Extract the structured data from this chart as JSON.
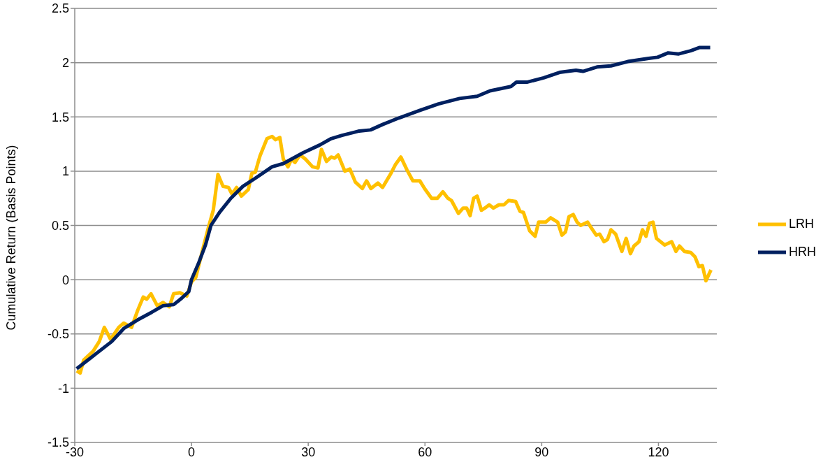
{
  "chart_data": {
    "type": "line",
    "ylabel": "Cumulative Return (Basis Points)",
    "xlim": [
      -30,
      135
    ],
    "ylim": [
      -1.5,
      2.5
    ],
    "xticks": [
      -30,
      0,
      30,
      60,
      90,
      120
    ],
    "yticks": [
      -1.5,
      -1,
      -0.5,
      0,
      0.5,
      1,
      1.5,
      2,
      2.5
    ],
    "grid": "y",
    "legend": "right",
    "series": [
      {
        "name": "LRH",
        "color": "#ffc000",
        "x": [
          -29.5,
          -28.6,
          -27.7,
          -25.3,
          -23.7,
          -22.4,
          -20.8,
          -18.7,
          -17.4,
          -15.4,
          -13.8,
          -12.4,
          -11.5,
          -10.4,
          -8.8,
          -7.3,
          -5.7,
          -4.6,
          -3.0,
          -1.2,
          0,
          1.1,
          2.9,
          4.5,
          5.6,
          6.8,
          8.1,
          9.5,
          10.4,
          11.6,
          12.8,
          14.6,
          15.5,
          16.4,
          17.6,
          19.4,
          20.7,
          21.6,
          22.7,
          23.6,
          24.8,
          25.7,
          26.6,
          27.9,
          29.3,
          31.1,
          32.5,
          33.4,
          34.7,
          35.9,
          36.8,
          37.7,
          39.4,
          40.7,
          42.1,
          43.9,
          45.0,
          46.1,
          47.9,
          49.1,
          51.1,
          52.4,
          53.8,
          55.4,
          56.9,
          58.7,
          59.9,
          61.7,
          63.2,
          64.6,
          65.9,
          66.8,
          68.6,
          69.8,
          70.7,
          71.6,
          72.5,
          73.4,
          74.5,
          75.4,
          76.5,
          77.6,
          79.0,
          80.3,
          81.5,
          83.3,
          84.4,
          85.3,
          86.9,
          88.3,
          89.2,
          91.0,
          92.3,
          94.1,
          95.2,
          96.1,
          97.0,
          98.1,
          99.1,
          100.0,
          101.8,
          102.7,
          104.0,
          104.9,
          106.0,
          106.9,
          107.8,
          109.0,
          110.6,
          111.7,
          112.8,
          113.7,
          115.0,
          115.9,
          116.8,
          117.7,
          118.6,
          119.5,
          121.6,
          123.4,
          124.5,
          125.4,
          126.7,
          128.3,
          129.4,
          130.4,
          131.3,
          132.2,
          133.5
        ],
        "values": [
          -0.84,
          -0.86,
          -0.74,
          -0.66,
          -0.57,
          -0.44,
          -0.55,
          -0.44,
          -0.4,
          -0.44,
          -0.28,
          -0.16,
          -0.18,
          -0.13,
          -0.24,
          -0.21,
          -0.25,
          -0.13,
          -0.12,
          -0.15,
          -0.02,
          0.02,
          0.28,
          0.5,
          0.64,
          0.97,
          0.86,
          0.85,
          0.79,
          0.85,
          0.77,
          0.83,
          0.98,
          0.99,
          1.14,
          1.3,
          1.32,
          1.29,
          1.31,
          1.11,
          1.04,
          1.11,
          1.08,
          1.15,
          1.11,
          1.04,
          1.03,
          1.2,
          1.09,
          1.13,
          1.12,
          1.15,
          1.0,
          1.02,
          0.9,
          0.84,
          0.91,
          0.84,
          0.89,
          0.85,
          0.97,
          1.06,
          1.13,
          1.01,
          0.91,
          0.91,
          0.84,
          0.75,
          0.75,
          0.81,
          0.75,
          0.73,
          0.61,
          0.66,
          0.66,
          0.59,
          0.75,
          0.77,
          0.64,
          0.66,
          0.69,
          0.66,
          0.69,
          0.69,
          0.73,
          0.72,
          0.63,
          0.62,
          0.45,
          0.4,
          0.53,
          0.53,
          0.57,
          0.53,
          0.41,
          0.44,
          0.58,
          0.6,
          0.53,
          0.5,
          0.53,
          0.48,
          0.41,
          0.42,
          0.35,
          0.37,
          0.46,
          0.42,
          0.26,
          0.38,
          0.24,
          0.31,
          0.35,
          0.46,
          0.4,
          0.52,
          0.53,
          0.38,
          0.32,
          0.35,
          0.26,
          0.31,
          0.26,
          0.25,
          0.21,
          0.12,
          0.13,
          -0.01,
          0.09
        ]
      },
      {
        "name": "HRH",
        "color": "#002060",
        "x": [
          -29.5,
          -25.9,
          -20.5,
          -17.4,
          -13.8,
          -10.2,
          -7.3,
          -4.6,
          -2.5,
          -0.7,
          0,
          1.8,
          3.6,
          5.0,
          7.2,
          10.1,
          13.2,
          16.2,
          20.7,
          23.6,
          28.7,
          32.9,
          35.9,
          38.7,
          43.1,
          46.0,
          49.1,
          53.3,
          58.7,
          63.5,
          68.9,
          73.4,
          76.7,
          82.1,
          83.5,
          86.2,
          90.5,
          94.6,
          98.8,
          100.6,
          104.2,
          107.8,
          112.1,
          117.5,
          119.8,
          122.5,
          125.2,
          128.3,
          130.6,
          133.3
        ],
        "values": [
          -0.82,
          -0.72,
          -0.57,
          -0.45,
          -0.37,
          -0.3,
          -0.24,
          -0.23,
          -0.17,
          -0.11,
          0,
          0.15,
          0.32,
          0.5,
          0.62,
          0.75,
          0.86,
          0.93,
          1.04,
          1.07,
          1.17,
          1.24,
          1.3,
          1.33,
          1.37,
          1.38,
          1.43,
          1.49,
          1.56,
          1.62,
          1.67,
          1.69,
          1.74,
          1.78,
          1.82,
          1.82,
          1.86,
          1.91,
          1.93,
          1.92,
          1.96,
          1.97,
          2.01,
          2.04,
          2.05,
          2.09,
          2.08,
          2.11,
          2.14,
          2.14
        ]
      }
    ]
  }
}
